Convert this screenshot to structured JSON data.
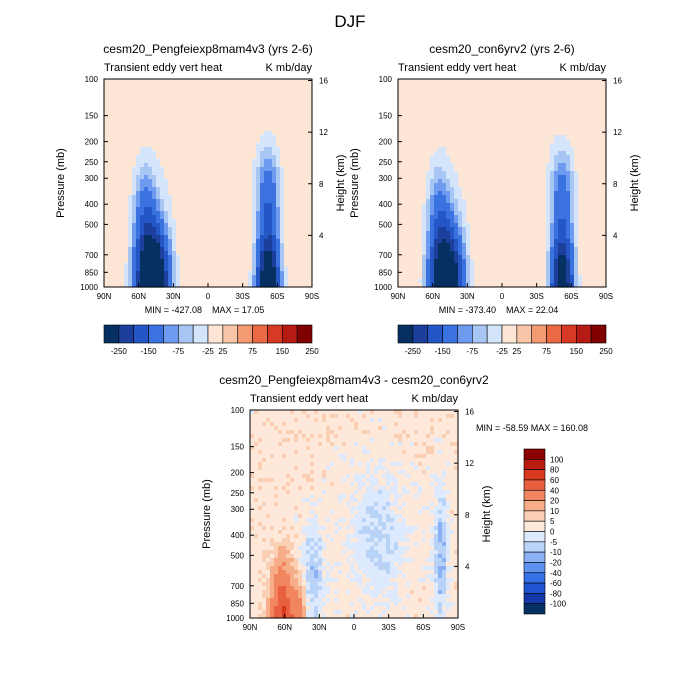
{
  "page": {
    "title": "DJF"
  },
  "colors": {
    "main_scale": [
      "#053061",
      "#1d3f9c",
      "#2457c5",
      "#3a72e0",
      "#6e9af0",
      "#a8c6f4",
      "#d4e5fb",
      "#fde6d5",
      "#f8c5a8",
      "#f39a72",
      "#ea6a45",
      "#d63a24",
      "#b51a14",
      "#800000"
    ],
    "diff_scale": [
      "#053061",
      "#1438a8",
      "#1f55d0",
      "#3572e6",
      "#5e92f0",
      "#8bb1f4",
      "#b9d2f8",
      "#dde9fc",
      "#fde8da",
      "#fbcfb4",
      "#f6ad88",
      "#f08560",
      "#e8603e",
      "#d7391f",
      "#bb1c12",
      "#8b0000"
    ],
    "axis": "#000000"
  },
  "chart_data": [
    {
      "id": "panel-a",
      "type": "contour",
      "title": "cesm20_Pengfeiexp8mam4v3 (yrs 2-6)",
      "left_label": "Transient eddy vert heat",
      "right_label": "K mb/day",
      "ylabel": "Pressure (mb)",
      "ylabel_right": "Height (km)",
      "x_ticks": [
        "90N",
        "60N",
        "30N",
        "0",
        "30S",
        "60S",
        "90S"
      ],
      "x_values": [
        90,
        60,
        30,
        0,
        -30,
        -60,
        -90
      ],
      "y_ticks": [
        100,
        150,
        200,
        250,
        300,
        400,
        500,
        700,
        850,
        1000
      ],
      "y_right_ticks": [
        16,
        12,
        8,
        4
      ],
      "ylim": [
        1000,
        100
      ],
      "min_text": "MIN = -427.08",
      "max_text": "MAX =  17.05",
      "colorbar_labels": [
        "-250",
        "-150",
        "-75",
        "-25",
        "25",
        "75",
        "150",
        "250"
      ],
      "colorbar_levels": [
        -250,
        -200,
        -150,
        -100,
        -75,
        -50,
        -25,
        25,
        50,
        75,
        100,
        150,
        200,
        250
      ]
    },
    {
      "id": "panel-b",
      "type": "contour",
      "title": "cesm20_con6yrv2 (yrs 2-6)",
      "left_label": "Transient eddy vert heat",
      "right_label": "K mb/day",
      "ylabel": "Pressure (mb)",
      "ylabel_right": "Height (km)",
      "x_ticks": [
        "90N",
        "60N",
        "30N",
        "0",
        "30S",
        "60S",
        "90S"
      ],
      "x_values": [
        90,
        60,
        30,
        0,
        -30,
        -60,
        -90
      ],
      "y_ticks": [
        100,
        150,
        200,
        250,
        300,
        400,
        500,
        700,
        850,
        1000
      ],
      "y_right_ticks": [
        16,
        12,
        8,
        4
      ],
      "ylim": [
        1000,
        100
      ],
      "min_text": "MIN = -373.40",
      "max_text": "MAX =  22.04",
      "colorbar_labels": [
        "-250",
        "-150",
        "-75",
        "-25",
        "25",
        "75",
        "150",
        "250"
      ],
      "colorbar_levels": [
        -250,
        -200,
        -150,
        -100,
        -75,
        -50,
        -25,
        25,
        50,
        75,
        100,
        150,
        200,
        250
      ]
    },
    {
      "id": "panel-diff",
      "type": "contour",
      "title": "cesm20_Pengfeiexp8mam4v3 - cesm20_con6yrv2",
      "left_label": "Transient eddy vert heat",
      "right_label": "K mb/day",
      "ylabel": "Pressure (mb)",
      "ylabel_right": "Height (km)",
      "x_ticks": [
        "90N",
        "60N",
        "30N",
        "0",
        "30S",
        "60S",
        "90S"
      ],
      "x_values": [
        90,
        60,
        30,
        0,
        -30,
        -60,
        -90
      ],
      "y_ticks": [
        100,
        150,
        200,
        250,
        300,
        400,
        500,
        700,
        850,
        1000
      ],
      "y_right_ticks": [
        16,
        12,
        8,
        4
      ],
      "ylim": [
        1000,
        100
      ],
      "minmax_text": "MIN = -58.59  MAX = 160.08",
      "colorbar_labels": [
        "100",
        "80",
        "60",
        "40",
        "20",
        "10",
        "5",
        "0",
        "-5",
        "-10",
        "-20",
        "-40",
        "-60",
        "-80",
        "-100"
      ],
      "colorbar_levels": [
        -100,
        -80,
        -60,
        -40,
        -20,
        -10,
        -5,
        0,
        5,
        10,
        20,
        40,
        60,
        80,
        100
      ]
    }
  ]
}
